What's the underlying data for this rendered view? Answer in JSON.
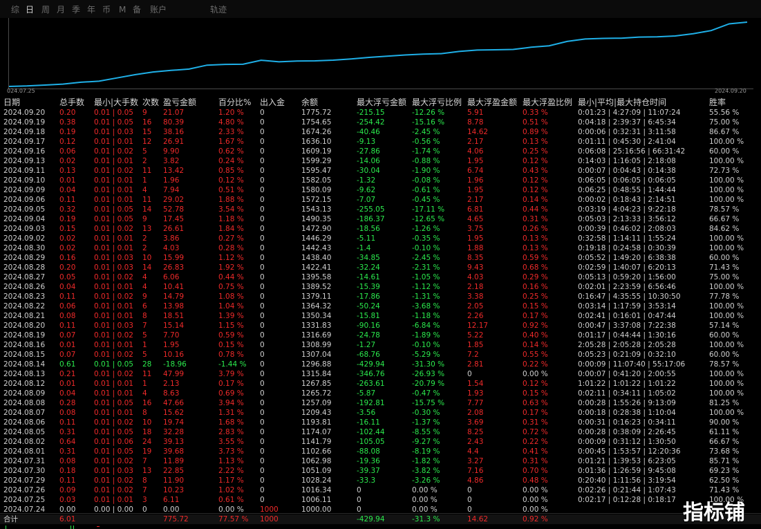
{
  "tabs": [
    "综",
    "日",
    "周",
    "月",
    "季",
    "年",
    "币",
    "M",
    "备",
    "账户",
    "轨迹"
  ],
  "active_tab": "日",
  "chart_data": {
    "type": "line",
    "x_start_label": "024.07.25",
    "x_end_label": "2024.09.20",
    "x": [
      "2024.07.24",
      "2024.07.25",
      "2024.07.26",
      "2024.07.29",
      "2024.07.30",
      "2024.07.31",
      "2024.08.01",
      "2024.08.02",
      "2024.08.05",
      "2024.08.06",
      "2024.08.07",
      "2024.08.08",
      "2024.08.09",
      "2024.08.12",
      "2024.08.13",
      "2024.08.14",
      "2024.08.15",
      "2024.08.16",
      "2024.08.19",
      "2024.08.20",
      "2024.08.21",
      "2024.08.22",
      "2024.08.23",
      "2024.08.26",
      "2024.08.27",
      "2024.08.28",
      "2024.08.29",
      "2024.08.30",
      "2024.09.02",
      "2024.09.03",
      "2024.09.04",
      "2024.09.05",
      "2024.09.06",
      "2024.09.09",
      "2024.09.10",
      "2024.09.11",
      "2024.09.13",
      "2024.09.16",
      "2024.09.17",
      "2024.09.18",
      "2024.09.19",
      "2024.09.20"
    ],
    "values": [
      1000.0,
      1006.11,
      1016.34,
      1028.24,
      1051.09,
      1062.98,
      1102.66,
      1141.79,
      1174.07,
      1193.81,
      1209.43,
      1257.09,
      1265.72,
      1267.85,
      1315.84,
      1296.88,
      1307.04,
      1308.99,
      1316.69,
      1331.83,
      1350.34,
      1364.32,
      1379.11,
      1389.52,
      1395.58,
      1422.41,
      1438.4,
      1442.43,
      1446.29,
      1472.9,
      1490.35,
      1543.13,
      1572.15,
      1580.09,
      1582.05,
      1595.47,
      1599.29,
      1609.19,
      1636.1,
      1674.26,
      1754.65,
      1775.72
    ],
    "color": "#1fb0e8"
  },
  "headers": [
    "日期",
    "总手数",
    "最小|大手数",
    "次数",
    "盈亏金额",
    "百分比%",
    "出入金",
    "余额",
    "最大浮亏金额",
    "最大浮亏比例",
    "最大浮盈金额",
    "最大浮盈比例",
    "最小|平均|最大持仓时间",
    "胜率"
  ],
  "rows": [
    [
      "2024.09.20",
      "0.20",
      "0.01 | 0.05",
      "9",
      "21.07",
      "1.20 %",
      "0",
      "1775.72",
      "-215.15",
      "-12.26 %",
      "5.91",
      "0.33 %",
      "0:01:23 | 4:27:09 | 11:07:24",
      "55.56 %"
    ],
    [
      "2024.09.19",
      "0.38",
      "0.01 | 0.05",
      "16",
      "80.39",
      "4.80 %",
      "0",
      "1754.65",
      "-254.42",
      "-15.16 %",
      "8.78",
      "0.51 %",
      "0:04:18 | 2:39:37 | 6:45:34",
      "75.00 %"
    ],
    [
      "2024.09.18",
      "0.19",
      "0.01 | 0.03",
      "15",
      "38.16",
      "2.33 %",
      "0",
      "1674.26",
      "-40.46",
      "-2.45 %",
      "14.62",
      "0.89 %",
      "0:00:06 | 0:32:31 | 3:11:58",
      "86.67 %"
    ],
    [
      "2024.09.17",
      "0.12",
      "0.01 | 0.01",
      "12",
      "26.91",
      "1.67 %",
      "0",
      "1636.10",
      "-9.13",
      "-0.56 %",
      "2.17",
      "0.13 %",
      "0:01:11 | 0:45:30 | 2:41:04",
      "100.00 %"
    ],
    [
      "2024.09.16",
      "0.06",
      "0.01 | 0.02",
      "5",
      "9.90",
      "0.62 %",
      "0",
      "1609.19",
      "-27.86",
      "-1.74 %",
      "4.06",
      "0.25 %",
      "0:06:08 | 25:16:56 | 66:31:42",
      "60.00 %"
    ],
    [
      "2024.09.13",
      "0.02",
      "0.01 | 0.01",
      "2",
      "3.82",
      "0.24 %",
      "0",
      "1599.29",
      "-14.06",
      "-0.88 %",
      "1.95",
      "0.12 %",
      "0:14:03 | 1:16:05 | 2:18:08",
      "100.00 %"
    ],
    [
      "2024.09.11",
      "0.13",
      "0.01 | 0.02",
      "11",
      "13.42",
      "0.85 %",
      "0",
      "1595.47",
      "-30.04",
      "-1.90 %",
      "6.74",
      "0.43 %",
      "0:00:07 | 0:04:43 | 0:14:38",
      "72.73 %"
    ],
    [
      "2024.09.10",
      "0.01",
      "0.01 | 0.01",
      "1",
      "1.96",
      "0.12 %",
      "0",
      "1582.05",
      "-1.32",
      "-0.08 %",
      "1.96",
      "0.12 %",
      "0:06:05 | 0:06:05 | 0:06:05",
      "100.00 %"
    ],
    [
      "2024.09.09",
      "0.04",
      "0.01 | 0.01",
      "4",
      "7.94",
      "0.51 %",
      "0",
      "1580.09",
      "-9.62",
      "-0.61 %",
      "1.95",
      "0.12 %",
      "0:06:25 | 0:48:55 | 1:44:44",
      "100.00 %"
    ],
    [
      "2024.09.06",
      "0.11",
      "0.01 | 0.01",
      "11",
      "29.02",
      "1.88 %",
      "0",
      "1572.15",
      "-7.07",
      "-0.45 %",
      "2.17",
      "0.14 %",
      "0:00:02 | 0:18:43 | 2:14:51",
      "100.00 %"
    ],
    [
      "2024.09.05",
      "0.32",
      "0.01 | 0.05",
      "14",
      "52.78",
      "3.54 %",
      "0",
      "1543.13",
      "-255.05",
      "-17.11 %",
      "6.81",
      "0.44 %",
      "0:03:19 | 4:04:23 | 9:22:18",
      "78.57 %"
    ],
    [
      "2024.09.04",
      "0.19",
      "0.01 | 0.05",
      "9",
      "17.45",
      "1.18 %",
      "0",
      "1490.35",
      "-186.37",
      "-12.65 %",
      "4.65",
      "0.31 %",
      "0:05:03 | 2:13:33 | 3:56:12",
      "66.67 %"
    ],
    [
      "2024.09.03",
      "0.15",
      "0.01 | 0.02",
      "13",
      "26.61",
      "1.84 %",
      "0",
      "1472.90",
      "-18.56",
      "-1.26 %",
      "3.75",
      "0.26 %",
      "0:00:39 | 0:46:02 | 2:08:03",
      "84.62 %"
    ],
    [
      "2024.09.02",
      "0.02",
      "0.01 | 0.01",
      "2",
      "3.86",
      "0.27 %",
      "0",
      "1446.29",
      "-5.11",
      "-0.35 %",
      "1.95",
      "0.13 %",
      "0:32:58 | 1:14:11 | 1:55:24",
      "100.00 %"
    ],
    [
      "2024.08.30",
      "0.02",
      "0.01 | 0.01",
      "2",
      "4.03",
      "0.28 %",
      "0",
      "1442.43",
      "-1.4",
      "-0.10 %",
      "1.88",
      "0.13 %",
      "0:19:18 | 0:24:58 | 0:30:39",
      "100.00 %"
    ],
    [
      "2024.08.29",
      "0.16",
      "0.01 | 0.03",
      "10",
      "15.99",
      "1.12 %",
      "0",
      "1438.40",
      "-34.85",
      "-2.45 %",
      "8.35",
      "0.59 %",
      "0:05:52 | 1:49:20 | 6:38:38",
      "60.00 %"
    ],
    [
      "2024.08.28",
      "0.20",
      "0.01 | 0.03",
      "14",
      "26.83",
      "1.92 %",
      "0",
      "1422.41",
      "-32.24",
      "-2.31 %",
      "9.43",
      "0.68 %",
      "0:02:59 | 1:40:07 | 6:20:13",
      "71.43 %"
    ],
    [
      "2024.08.27",
      "0.05",
      "0.01 | 0.02",
      "4",
      "6.06",
      "0.44 %",
      "0",
      "1395.58",
      "-14.61",
      "-1.05 %",
      "4.03",
      "0.29 %",
      "0:05:13 | 0:59:20 | 1:56:00",
      "75.00 %"
    ],
    [
      "2024.08.26",
      "0.04",
      "0.01 | 0.01",
      "4",
      "10.41",
      "0.75 %",
      "0",
      "1389.52",
      "-15.39",
      "-1.12 %",
      "2.18",
      "0.16 %",
      "0:02:01 | 2:23:59 | 6:56:46",
      "100.00 %"
    ],
    [
      "2024.08.23",
      "0.11",
      "0.01 | 0.02",
      "9",
      "14.79",
      "1.08 %",
      "0",
      "1379.11",
      "-17.86",
      "-1.31 %",
      "3.38",
      "0.25 %",
      "0:16:47 | 4:35:55 | 10:30:50",
      "77.78 %"
    ],
    [
      "2024.08.22",
      "0.06",
      "0.01 | 0.01",
      "6",
      "13.98",
      "1.04 %",
      "0",
      "1364.32",
      "-50.24",
      "-3.68 %",
      "2.05",
      "0.15 %",
      "0:03:14 | 1:17:59 | 3:53:14",
      "100.00 %"
    ],
    [
      "2024.08.21",
      "0.08",
      "0.01 | 0.01",
      "8",
      "18.51",
      "1.39 %",
      "0",
      "1350.34",
      "-15.81",
      "-1.18 %",
      "2.26",
      "0.17 %",
      "0:02:41 | 0:16:01 | 0:47:44",
      "100.00 %"
    ],
    [
      "2024.08.20",
      "0.11",
      "0.01 | 0.03",
      "7",
      "15.14",
      "1.15 %",
      "0",
      "1331.83",
      "-90.16",
      "-6.84 %",
      "12.17",
      "0.92 %",
      "0:00:47 | 3:37:08 | 7:22:38",
      "57.14 %"
    ],
    [
      "2024.08.19",
      "0.07",
      "0.01 | 0.02",
      "5",
      "7.70",
      "0.59 %",
      "0",
      "1316.69",
      "-24.78",
      "-1.89 %",
      "5.22",
      "0.40 %",
      "0:01:17 | 0:44:44 | 1:30:16",
      "60.00 %"
    ],
    [
      "2024.08.16",
      "0.01",
      "0.01 | 0.01",
      "1",
      "1.95",
      "0.15 %",
      "0",
      "1308.99",
      "-1.27",
      "-0.10 %",
      "1.85",
      "0.14 %",
      "2:05:28 | 2:05:28 | 2:05:28",
      "100.00 %"
    ],
    [
      "2024.08.15",
      "0.07",
      "0.01 | 0.02",
      "5",
      "10.16",
      "0.78 %",
      "0",
      "1307.04",
      "-68.76",
      "-5.29 %",
      "7.2",
      "0.55 %",
      "0:05:23 | 0:21:09 | 0:32:10",
      "60.00 %"
    ],
    [
      "2024.08.14",
      "0.61",
      "0.01 | 0.05",
      "28",
      "-18.96",
      "-1.44 %",
      "0",
      "1296.88",
      "-429.94",
      "-31.30 %",
      "2.81",
      "0.22 %",
      "0:00:09 | 11:07:40 | 55:17:06",
      "78.57 %"
    ],
    [
      "2024.08.13",
      "0.21",
      "0.01 | 0.02",
      "11",
      "47.99",
      "3.79 %",
      "0",
      "1315.84",
      "-346.76",
      "-26.93 %",
      "0",
      "0.00 %",
      "0:00:07 | 0:41:20 | 2:00:55",
      "100.00 %"
    ],
    [
      "2024.08.12",
      "0.01",
      "0.01 | 0.01",
      "1",
      "2.13",
      "0.17 %",
      "0",
      "1267.85",
      "-263.61",
      "-20.79 %",
      "1.54",
      "0.12 %",
      "1:01:22 | 1:01:22 | 1:01:22",
      "100.00 %"
    ],
    [
      "2024.08.09",
      "0.04",
      "0.01 | 0.01",
      "4",
      "8.63",
      "0.69 %",
      "0",
      "1265.72",
      "-5.87",
      "-0.47 %",
      "1.93",
      "0.15 %",
      "0:02:11 | 0:34:11 | 1:05:02",
      "100.00 %"
    ],
    [
      "2024.08.08",
      "0.28",
      "0.01 | 0.05",
      "16",
      "47.66",
      "3.94 %",
      "0",
      "1257.09",
      "-192.81",
      "-15.75 %",
      "7.77",
      "0.63 %",
      "0:00:28 | 1:55:26 | 9:13:09",
      "81.25 %"
    ],
    [
      "2024.08.07",
      "0.08",
      "0.01 | 0.01",
      "8",
      "15.62",
      "1.31 %",
      "0",
      "1209.43",
      "-3.56",
      "-0.30 %",
      "2.08",
      "0.17 %",
      "0:00:18 | 0:28:38 | 1:10:04",
      "100.00 %"
    ],
    [
      "2024.08.06",
      "0.11",
      "0.01 | 0.02",
      "10",
      "19.74",
      "1.68 %",
      "0",
      "1193.81",
      "-16.11",
      "-1.37 %",
      "3.69",
      "0.31 %",
      "0:00:31 | 0:16:23 | 0:34:11",
      "90.00 %"
    ],
    [
      "2024.08.05",
      "0.31",
      "0.01 | 0.05",
      "18",
      "32.28",
      "2.83 %",
      "0",
      "1174.07",
      "-102.44",
      "-8.55 %",
      "8.25",
      "0.72 %",
      "0:00:28 | 0:38:09 | 2:26:45",
      "61.11 %"
    ],
    [
      "2024.08.02",
      "0.64",
      "0.01 | 0.06",
      "24",
      "39.13",
      "3.55 %",
      "0",
      "1141.79",
      "-105.05",
      "-9.27 %",
      "2.43",
      "0.22 %",
      "0:00:09 | 0:31:12 | 1:30:50",
      "66.67 %"
    ],
    [
      "2024.08.01",
      "0.31",
      "0.01 | 0.05",
      "19",
      "39.68",
      "3.73 %",
      "0",
      "1102.66",
      "-88.08",
      "-8.19 %",
      "4.4",
      "0.41 %",
      "0:00:45 | 1:53:57 | 12:20:36",
      "73.68 %"
    ],
    [
      "2024.07.31",
      "0.08",
      "0.01 | 0.02",
      "7",
      "11.89",
      "1.13 %",
      "0",
      "1062.98",
      "-19.36",
      "-1.82 %",
      "3.27",
      "0.31 %",
      "0:01:21 | 1:39:53 | 6:23:05",
      "85.71 %"
    ],
    [
      "2024.07.30",
      "0.18",
      "0.01 | 0.03",
      "13",
      "22.85",
      "2.22 %",
      "0",
      "1051.09",
      "-39.37",
      "-3.82 %",
      "7.16",
      "0.70 %",
      "0:01:36 | 1:26:59 | 9:45:08",
      "69.23 %"
    ],
    [
      "2024.07.29",
      "0.11",
      "0.01 | 0.02",
      "8",
      "11.90",
      "1.17 %",
      "0",
      "1028.24",
      "-33.3",
      "-3.26 %",
      "4.86",
      "0.48 %",
      "0:20:40 | 1:11:56 | 3:19:54",
      "62.50 %"
    ],
    [
      "2024.07.26",
      "0.09",
      "0.01 | 0.02",
      "7",
      "10.23",
      "1.02 %",
      "0",
      "1016.34",
      "0",
      "0.00 %",
      "0",
      "0.00 %",
      "0:02:26 | 0:21:44 | 1:07:43",
      "71.43 %"
    ],
    [
      "2024.07.25",
      "0.03",
      "0.01 | 0.01",
      "3",
      "6.11",
      "0.61 %",
      "0",
      "1006.11",
      "0",
      "0.00 %",
      "0",
      "0.00 %",
      "0:02:17 | 0:12:28 | 0:18:17",
      "100.00 %"
    ],
    [
      "2024.07.24",
      "0.00",
      "0.00 | 0.00",
      "0",
      "0.00",
      "0.00 %",
      "1000",
      "1000.00",
      "0",
      "0.00 %",
      "0",
      "0.00 %",
      "",
      ""
    ]
  ],
  "summary": [
    "合计",
    "6.01",
    "",
    "",
    "775.72",
    "77.57 %",
    "1000",
    "",
    "-429.94",
    "-31.3 %",
    "14.62",
    "0.92 %",
    "",
    ""
  ],
  "logo_text": "指标铺",
  "colors": {
    "loss": "#ef2a2a",
    "profit": "#2bea4d",
    "neutral": "#d0d0d0",
    "line": "#1fb0e8"
  }
}
